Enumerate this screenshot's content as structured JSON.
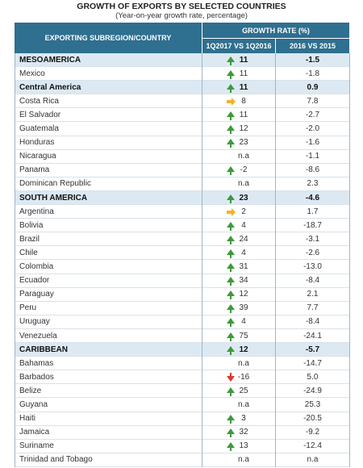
{
  "title": "GROWTH OF EXPORTS BY SELECTED COUNTRIES",
  "subtitle": "(Year-on-year growth rate, percentage)",
  "header": {
    "country": "EXPORTING SUBREGION/COUNTRY",
    "group": "GROWTH RATE (%)",
    "q": "1Q2017 VS 1Q2016",
    "y": "2016 VS 2015"
  },
  "rows": [
    {
      "cells": [
        "MESOAMERICA",
        "11",
        "-1.5"
      ],
      "bold": true,
      "arrow": "up"
    },
    {
      "cells": [
        "Mexico",
        "11",
        "-1.8"
      ],
      "arrow": "up"
    },
    {
      "cells": [
        "Central America",
        "11",
        "0.9"
      ],
      "bold": true,
      "arrow": "up"
    },
    {
      "cells": [
        "Costa Rica",
        "8",
        "7.8"
      ],
      "arrow": "right"
    },
    {
      "cells": [
        "El Salvador",
        "11",
        "-2.7"
      ],
      "arrow": "up"
    },
    {
      "cells": [
        "Guatemala",
        "12",
        "-2.0"
      ],
      "arrow": "up"
    },
    {
      "cells": [
        "Honduras",
        "23",
        "-1.6"
      ],
      "arrow": "up"
    },
    {
      "cells": [
        "Nicaragua",
        "n.a",
        "-1.1"
      ]
    },
    {
      "cells": [
        "Panama",
        "-2",
        "-8.6"
      ],
      "arrow": "up"
    },
    {
      "cells": [
        "Dominican Republic",
        "n.a",
        "2.3"
      ]
    },
    {
      "cells": [
        "SOUTH AMERICA",
        "23",
        "-4.6"
      ],
      "bold": true,
      "arrow": "up"
    },
    {
      "cells": [
        "Argentina",
        "2",
        "1.7"
      ],
      "arrow": "right"
    },
    {
      "cells": [
        "Bolivia",
        "4",
        "-18.7"
      ],
      "arrow": "up"
    },
    {
      "cells": [
        "Brazil",
        "24",
        "-3.1"
      ],
      "arrow": "up"
    },
    {
      "cells": [
        "Chile",
        "4",
        "-2.6"
      ],
      "arrow": "up"
    },
    {
      "cells": [
        "Colombia",
        "31",
        "-13.0"
      ],
      "arrow": "up"
    },
    {
      "cells": [
        "Ecuador",
        "34",
        "-8.4"
      ],
      "arrow": "up"
    },
    {
      "cells": [
        "Paraguay",
        "12",
        "2.1"
      ],
      "arrow": "up"
    },
    {
      "cells": [
        "Peru",
        "39",
        "7.7"
      ],
      "arrow": "up"
    },
    {
      "cells": [
        "Uruguay",
        "4",
        "-8.4"
      ],
      "arrow": "up"
    },
    {
      "cells": [
        "Venezuela",
        "75",
        "-24.1"
      ],
      "arrow": "up"
    },
    {
      "cells": [
        "CARIBBEAN",
        "12",
        "-5.7"
      ],
      "bold": true,
      "arrow": "up"
    },
    {
      "cells": [
        "Bahamas",
        "n.a",
        "-14.7"
      ]
    },
    {
      "cells": [
        "Barbados",
        "-16",
        "5.0"
      ],
      "arrow": "down"
    },
    {
      "cells": [
        "Belize",
        "25",
        "-24.9"
      ],
      "arrow": "up"
    },
    {
      "cells": [
        "Guyana",
        "n.a",
        "25.3"
      ]
    },
    {
      "cells": [
        "Haiti",
        "3",
        "-20.5"
      ],
      "arrow": "up"
    },
    {
      "cells": [
        "Jamaica",
        "32",
        "-9.2"
      ],
      "arrow": "up"
    },
    {
      "cells": [
        "Suriname",
        "13",
        "-12.4"
      ],
      "arrow": "up"
    },
    {
      "cells": [
        "Trinidad and Tobago",
        "n.a",
        "n.a"
      ]
    }
  ]
}
